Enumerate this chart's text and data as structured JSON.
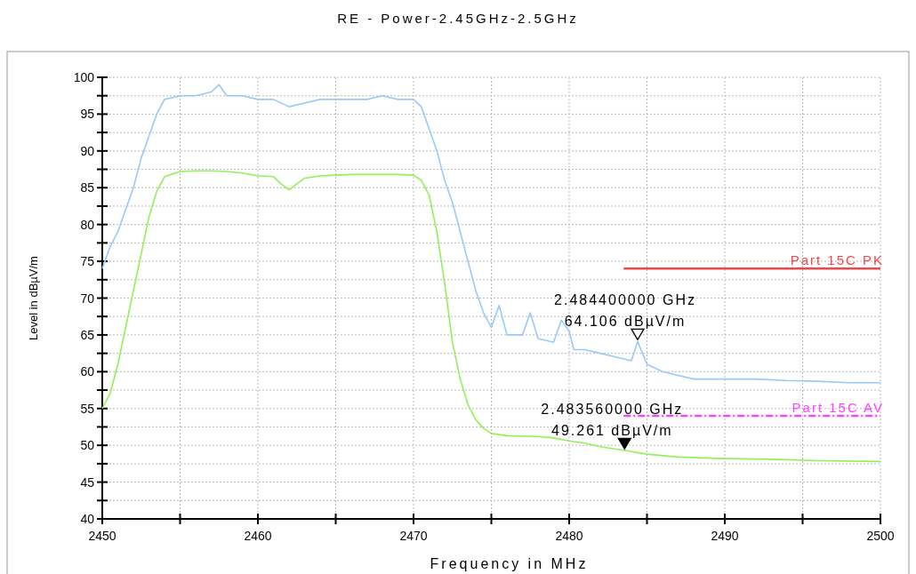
{
  "chart_data": {
    "type": "line",
    "title": "RE - Power-2.45GHz-2.5GHz",
    "xlabel": "Frequency in MHz",
    "ylabel": "Level in dBµV/m",
    "xlim": [
      2450,
      2500
    ],
    "ylim": [
      40,
      100
    ],
    "xticks": [
      2450,
      {
        "value": 2455,
        "label": null
      },
      2460,
      {
        "value": 2465,
        "label": null
      },
      2470,
      {
        "value": 2475,
        "label": null
      },
      2480,
      {
        "value": 2485,
        "label": null
      },
      2490,
      {
        "value": 2495,
        "label": null
      },
      2500
    ],
    "yticks": [
      40,
      {
        "value": 42.5,
        "label": null
      },
      45,
      {
        "value": 47.5,
        "label": null
      },
      50,
      {
        "value": 52.5,
        "label": null
      },
      55,
      {
        "value": 57.5,
        "label": null
      },
      60,
      {
        "value": 62.5,
        "label": null
      },
      65,
      {
        "value": 67.5,
        "label": null
      },
      70,
      {
        "value": 72.5,
        "label": null
      },
      75,
      {
        "value": 77.5,
        "label": null
      },
      80,
      {
        "value": 82.5,
        "label": null
      },
      85,
      {
        "value": 87.5,
        "label": null
      },
      90,
      {
        "value": 92.5,
        "label": null
      },
      95,
      {
        "value": 97.5,
        "label": null
      },
      100
    ],
    "grid": true,
    "series": [
      {
        "color": "#99c9fa",
        "x": [
          2450,
          2450.5,
          2451,
          2451.5,
          2452,
          2452.5,
          2453,
          2453.5,
          2454,
          2455,
          2456,
          2457,
          2457.5,
          2458,
          2459,
          2460,
          2461,
          2462,
          2463,
          2464,
          2465,
          2466,
          2467,
          2468,
          2469,
          2470,
          2470.5,
          2471,
          2471.5,
          2472,
          2472.5,
          2473,
          2473.5,
          2474,
          2474.5,
          2475,
          2475.5,
          2476,
          2477,
          2477.5,
          2478,
          2479,
          2479.5,
          2480,
          2480.3,
          2481,
          2482,
          2483,
          2484,
          2484.4,
          2485,
          2486,
          2487,
          2488,
          2490,
          2492,
          2494,
          2496,
          2498,
          2500
        ],
        "values": [
          74,
          77,
          79,
          82,
          85,
          89,
          92,
          95,
          97,
          97.5,
          97.5,
          98,
          99,
          97.5,
          97.5,
          97,
          97,
          96,
          96.5,
          97,
          97,
          97,
          97,
          97.5,
          97,
          97,
          96,
          93,
          90,
          86,
          83,
          79,
          75,
          71,
          68,
          66,
          69,
          65,
          65,
          68,
          64.5,
          64,
          67,
          65.5,
          63,
          63,
          62.5,
          62,
          61.5,
          64.1,
          61,
          60,
          59.5,
          59,
          59,
          59,
          58.8,
          58.7,
          58.5,
          58.5
        ]
      },
      {
        "color": "#92f05a",
        "x": [
          2450,
          2450.5,
          2451,
          2451.5,
          2452,
          2452.5,
          2453,
          2453.5,
          2454,
          2455,
          2456,
          2457,
          2458,
          2459,
          2460,
          2461,
          2461.5,
          2462,
          2462.5,
          2463,
          2464,
          2465,
          2466,
          2467,
          2468,
          2469,
          2470,
          2470.5,
          2471,
          2471.5,
          2472,
          2472.5,
          2473,
          2473.5,
          2474,
          2474.5,
          2475,
          2476,
          2478,
          2479,
          2480,
          2481,
          2482,
          2483.6,
          2485,
          2487,
          2490,
          2493,
          2496,
          2500
        ],
        "values": [
          55,
          57,
          61,
          66,
          71,
          76,
          81,
          84.5,
          86.5,
          87.2,
          87.3,
          87.3,
          87.2,
          87,
          86.6,
          86.5,
          85.5,
          84.7,
          85.5,
          86.3,
          86.6,
          86.7,
          86.8,
          86.8,
          86.8,
          86.8,
          86.7,
          86,
          84,
          79,
          72,
          64,
          59,
          55.5,
          53.5,
          52.3,
          51.6,
          51.3,
          51.2,
          51,
          50.6,
          50.3,
          49.8,
          49.3,
          48.8,
          48.4,
          48.2,
          48.1,
          47.9,
          47.8
        ]
      },
      {
        "name": "Part 15C PK",
        "color": "#f04848",
        "x": [
          2483.5,
          2500
        ],
        "values": [
          74,
          74
        ]
      },
      {
        "name": "Part 15C  AV",
        "color": "#ff40ff",
        "line_style": "dashed",
        "x": [
          2483.5,
          2500
        ],
        "values": [
          54,
          54
        ]
      }
    ],
    "annotations": [
      {
        "text": "2.484400000 GHz\n64.106 dBµV/m",
        "x": 2484.4,
        "y": 64.106
      },
      {
        "text": "2.483560000 GHz\n49.261 dBµV/m",
        "x": 2483.56,
        "y": 49.261
      }
    ]
  }
}
